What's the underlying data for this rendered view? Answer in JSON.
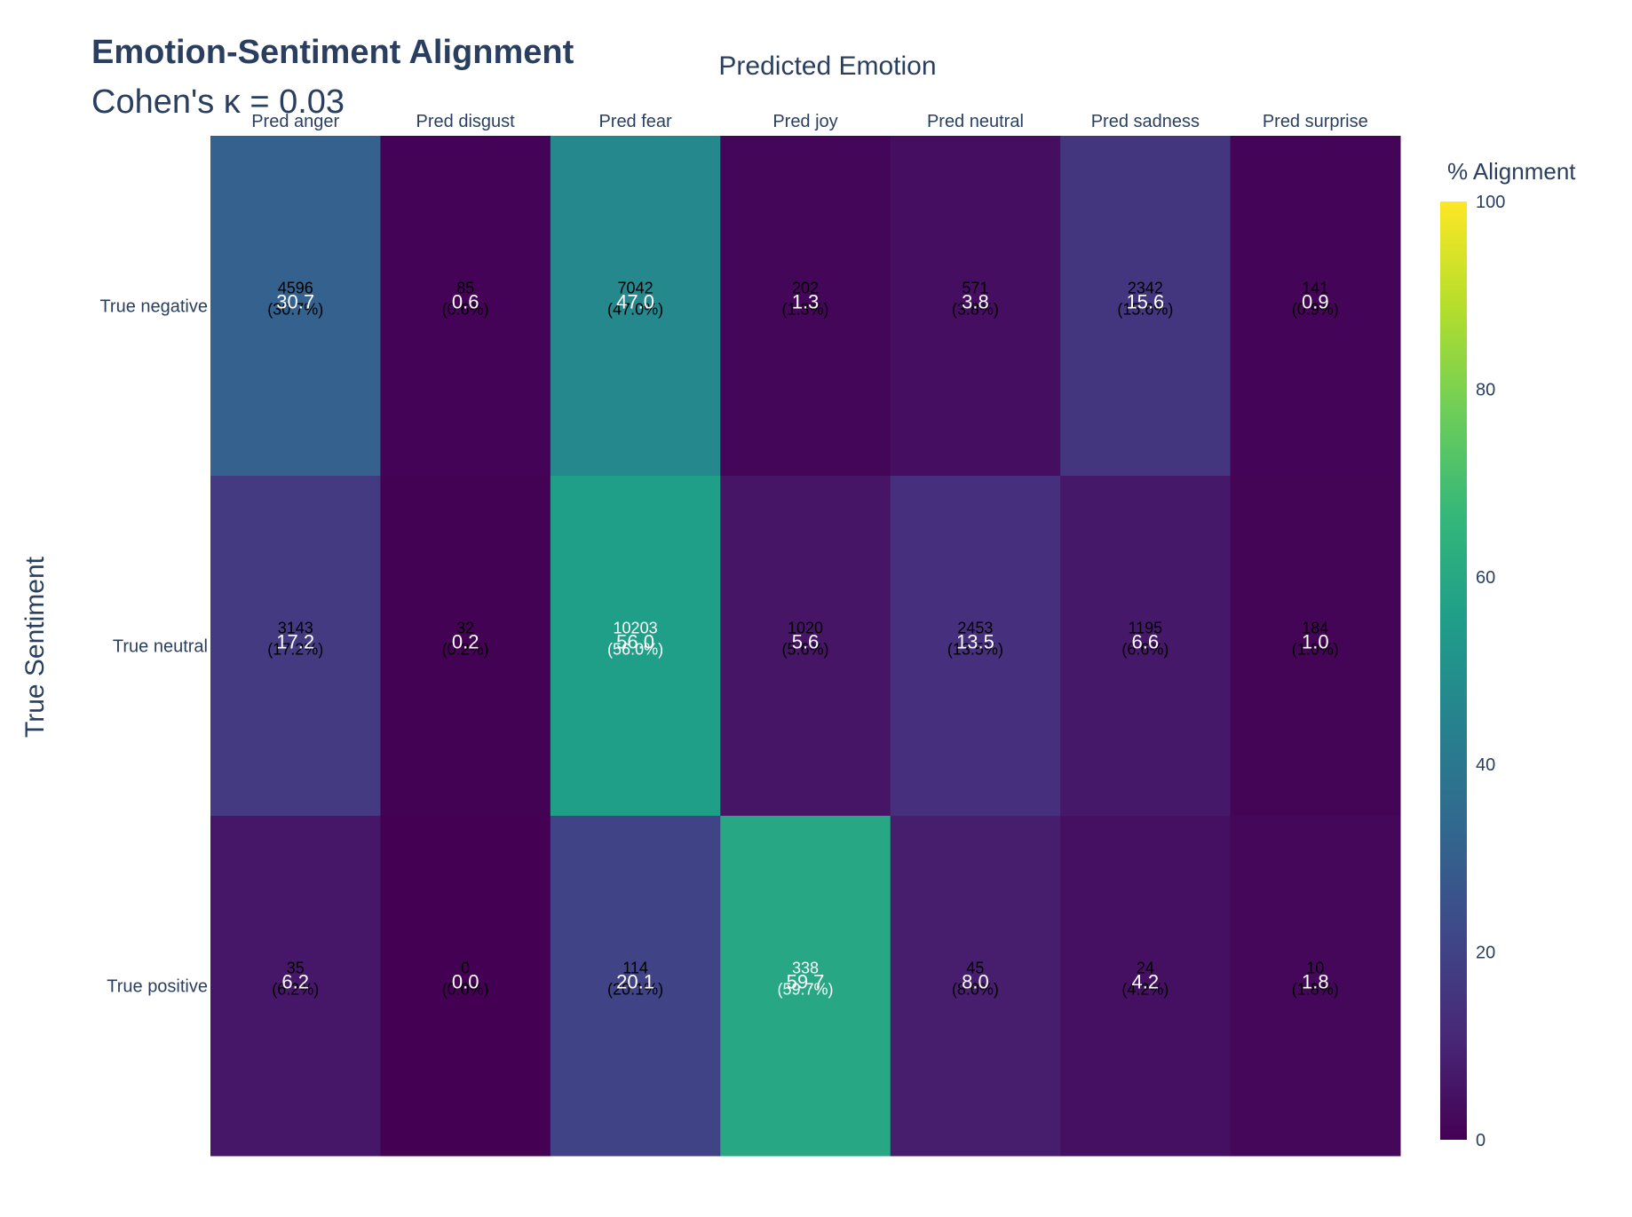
{
  "title": "Emotion-Sentiment Alignment",
  "subtitle": "Cohen's κ = 0.03",
  "colorbar_title": "% Alignment",
  "chart_data": {
    "type": "heatmap",
    "title": "Emotion-Sentiment Alignment",
    "subtitle": "Cohen's κ = 0.03",
    "xlabel": "Predicted Emotion",
    "ylabel": "True Sentiment",
    "x_categories": [
      "Pred anger",
      "Pred disgust",
      "Pred fear",
      "Pred joy",
      "Pred neutral",
      "Pred sadness",
      "Pred surprise"
    ],
    "y_categories": [
      "True negative",
      "True neutral",
      "True positive"
    ],
    "counts": [
      [
        4596,
        85,
        7042,
        202,
        571,
        2342,
        141
      ],
      [
        3143,
        32,
        10203,
        1020,
        2453,
        1195,
        184
      ],
      [
        35,
        0,
        114,
        338,
        45,
        24,
        10
      ]
    ],
    "percent": [
      [
        30.7,
        0.6,
        47.0,
        1.3,
        3.8,
        15.6,
        0.9
      ],
      [
        17.2,
        0.2,
        56.0,
        5.6,
        13.5,
        6.6,
        1.0
      ],
      [
        6.2,
        0.0,
        20.1,
        59.7,
        8.0,
        4.2,
        1.8
      ]
    ],
    "colorscale": "Viridis",
    "zmin": 0,
    "zmax": 100,
    "colorbar_title": "% Alignment",
    "colorbar_ticks": [
      0,
      20,
      40,
      60,
      80,
      100
    ]
  }
}
